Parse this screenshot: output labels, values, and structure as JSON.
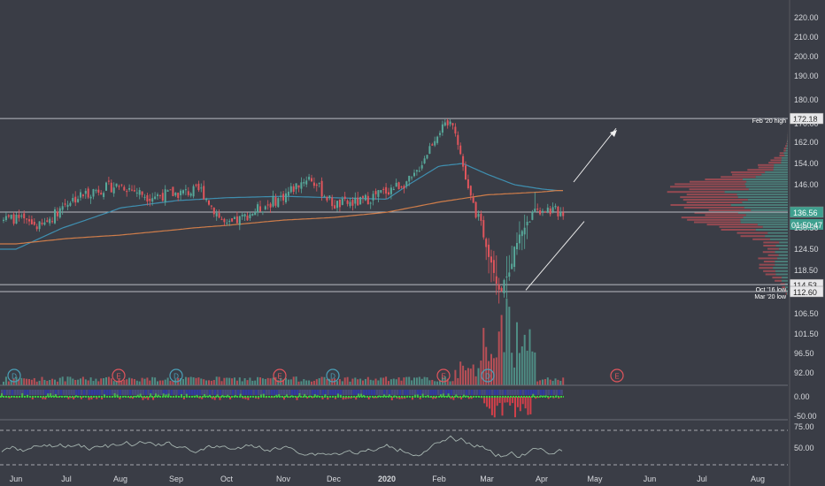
{
  "colors": {
    "background": "#3a3d46",
    "up": "#57a89a",
    "down": "#e0555c",
    "ma_short": "#3f8fb0",
    "ma_long": "#cf7d4a",
    "rsi": "#a6b5b0",
    "osc_bg": "#2e3ab8",
    "level_line": "#b9bcc2",
    "axis_text": "#d6d8dc"
  },
  "price_axis": {
    "ticks": [
      "220.00",
      "210.00",
      "200.00",
      "190.00",
      "180.00",
      "170.00",
      "162.00",
      "154.00",
      "146.00",
      "136.56",
      "130.50",
      "124.50",
      "118.50",
      "112.60",
      "106.50",
      "101.50",
      "96.50",
      "92.00"
    ],
    "values": [
      220,
      210,
      200,
      190,
      180,
      170,
      162,
      154,
      146,
      136.56,
      130.5,
      124.5,
      118.5,
      112.6,
      106.5,
      101.5,
      96.5,
      92
    ]
  },
  "levels": [
    {
      "label": "Feb '20 high",
      "value": "172.18",
      "price": 172.18
    },
    {
      "label": "",
      "value": "136.56",
      "price": 136.56
    },
    {
      "label": "Oct '16 low",
      "value": "114.53",
      "price": 114.53
    },
    {
      "label": "Mar '20 low",
      "value": "112.60",
      "price": 112.6
    }
  ],
  "current_price": {
    "value": "136.56",
    "countdown": "01:50:47"
  },
  "osc_axis": [
    "0.00",
    "-50.00"
  ],
  "rsi_axis": [
    "75.00",
    "50.00"
  ],
  "time_axis": [
    "Jun",
    "Jul",
    "Aug",
    "Sep",
    "Oct",
    "Nov",
    "Dec",
    "2020",
    "Feb",
    "Mar",
    "Apr",
    "May",
    "Jun",
    "Jul",
    "Aug"
  ],
  "event_markers": [
    {
      "letter": "D",
      "kind": "dividend"
    },
    {
      "letter": "E",
      "kind": "earnings"
    },
    {
      "letter": "D",
      "kind": "dividend"
    },
    {
      "letter": "E",
      "kind": "earnings"
    },
    {
      "letter": "D",
      "kind": "dividend"
    },
    {
      "letter": "E",
      "kind": "earnings"
    },
    {
      "letter": "D",
      "kind": "dividend"
    },
    {
      "letter": "E",
      "kind": "earnings"
    }
  ],
  "chart_data": {
    "type": "line",
    "title": "",
    "price_anchors": {
      "x_month_index": [
        0,
        0.5,
        1,
        1.5,
        2,
        2.5,
        3,
        3.5,
        4,
        4.5,
        5,
        5.5,
        6,
        6.5,
        7,
        7.5,
        8,
        8.3,
        8.6,
        9,
        9.25,
        9.5,
        9.75,
        10,
        10.3
      ],
      "close": [
        134,
        131,
        140,
        144,
        146,
        142,
        143,
        144,
        131,
        137,
        142,
        149,
        139,
        140,
        144,
        148,
        167,
        171,
        144,
        126,
        112.6,
        124,
        134,
        138,
        136.56
      ]
    },
    "ma_short_anchors": {
      "x_month_index": [
        0,
        1,
        2,
        3,
        4,
        5,
        6,
        7,
        8,
        8.5,
        9,
        9.5,
        10,
        10.3
      ],
      "value": [
        124.5,
        131,
        138,
        140.5,
        141.5,
        142,
        141.5,
        141,
        153,
        154,
        150,
        146,
        144.5,
        144
      ]
    },
    "ma_long_anchors": {
      "x_month_index": [
        0,
        1,
        2,
        3,
        4,
        5,
        6,
        7,
        8,
        9,
        10,
        10.3
      ],
      "value": [
        126,
        127.5,
        128.5,
        130,
        131.5,
        133.5,
        134.5,
        136.5,
        140,
        142.5,
        143.5,
        144
      ]
    },
    "volume_profile": "horizontal volume-by-price histogram on right side"
  }
}
